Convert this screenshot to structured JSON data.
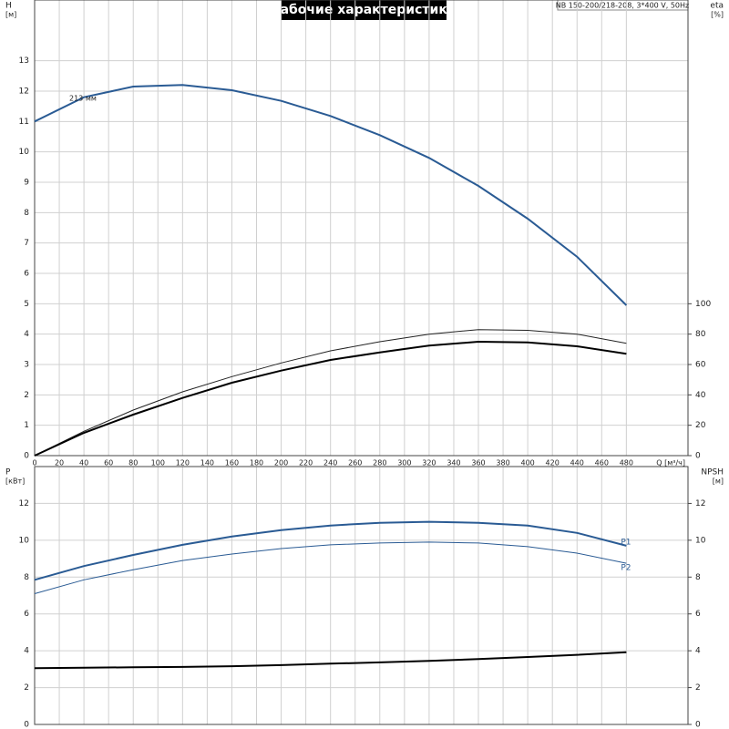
{
  "chart_data": [
    {
      "type": "line",
      "title": "Рабочие характеристики",
      "subtitle": "NB 150-200/218-208, 3*400 V, 50Hz",
      "ylabel": "H",
      "ylabel_unit": "[м]",
      "y2label": "eta",
      "y2label_unit": "[%]",
      "xlabel": "Q [м³/ч]",
      "annotation": "213 мм",
      "x": [
        0,
        40,
        80,
        120,
        160,
        200,
        240,
        280,
        320,
        360,
        400,
        440,
        480
      ],
      "xlim": [
        0,
        530
      ],
      "xticks": [
        0,
        20,
        40,
        60,
        80,
        100,
        120,
        140,
        160,
        180,
        200,
        220,
        240,
        260,
        280,
        300,
        320,
        340,
        360,
        380,
        400,
        420,
        440,
        460,
        480
      ],
      "ylim": [
        0,
        15
      ],
      "yticks": [
        0,
        1,
        2,
        3,
        4,
        5,
        6,
        7,
        8,
        9,
        10,
        11,
        12,
        13
      ],
      "y2lim": [
        0,
        300
      ],
      "y2ticks": [
        0,
        20,
        40,
        60,
        80,
        100
      ],
      "grid": true,
      "series": [
        {
          "color": "#2a5b94",
          "linewidth": 2,
          "values": [
            11.0,
            11.8,
            12.15,
            12.2,
            12.03,
            11.68,
            11.18,
            10.55,
            9.8,
            8.88,
            7.8,
            6.55,
            4.95
          ]
        },
        {
          "color": "#222222",
          "linewidth": 1,
          "axis": "y2",
          "values": [
            0,
            16,
            30,
            42,
            52,
            61,
            69,
            75,
            80,
            83,
            82.5,
            80,
            74
          ]
        },
        {
          "color": "#000000",
          "linewidth": 2,
          "axis": "y2",
          "values": [
            0,
            15,
            27,
            38,
            48,
            56,
            63,
            68,
            72.5,
            75,
            74.5,
            72,
            67
          ]
        }
      ]
    },
    {
      "type": "line",
      "ylabel": "P",
      "ylabel_unit": "[кВт]",
      "y2label": "NPSH",
      "y2label_unit": "[м]",
      "x": [
        0,
        40,
        80,
        120,
        160,
        200,
        240,
        280,
        320,
        360,
        400,
        440,
        480
      ],
      "xlim": [
        0,
        530
      ],
      "ylim": [
        0,
        14
      ],
      "yticks": [
        0,
        2,
        4,
        6,
        8,
        10,
        12
      ],
      "y2lim": [
        0,
        14
      ],
      "y2ticks": [
        0,
        2,
        4,
        6,
        8,
        10,
        12
      ],
      "grid": true,
      "series": [
        {
          "name": "P1",
          "color": "#2a5b94",
          "linewidth": 2,
          "values": [
            7.85,
            8.6,
            9.2,
            9.75,
            10.2,
            10.55,
            10.8,
            10.95,
            11.0,
            10.95,
            10.8,
            10.4,
            9.7
          ]
        },
        {
          "name": "P2",
          "color": "#2a5b94",
          "linewidth": 1,
          "values": [
            7.1,
            7.85,
            8.4,
            8.9,
            9.25,
            9.55,
            9.75,
            9.85,
            9.9,
            9.85,
            9.65,
            9.3,
            8.75
          ]
        },
        {
          "color": "#000000",
          "linewidth": 2,
          "axis": "y2",
          "values": [
            3.05,
            3.08,
            3.1,
            3.12,
            3.16,
            3.22,
            3.3,
            3.37,
            3.45,
            3.55,
            3.66,
            3.78,
            3.92
          ]
        }
      ]
    }
  ]
}
